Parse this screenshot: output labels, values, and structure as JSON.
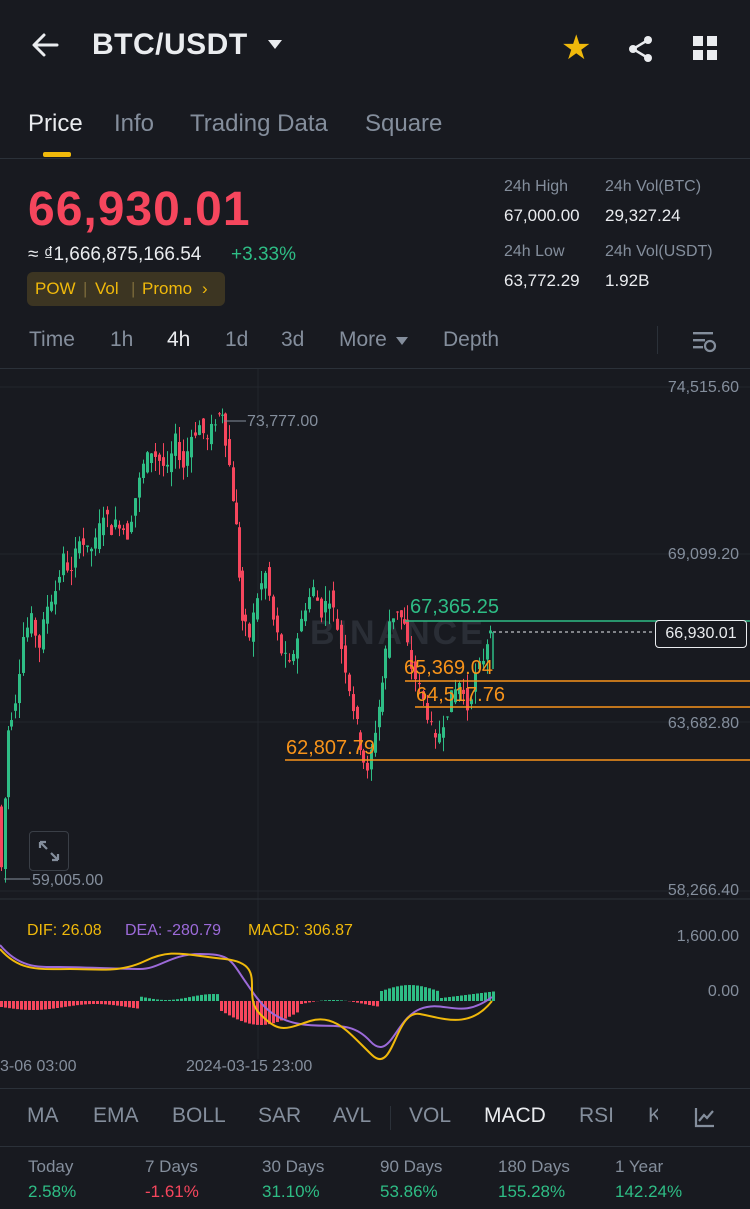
{
  "header": {
    "title": "BTC/USDT",
    "icons": [
      "back-arrow-icon",
      "caret-down-icon",
      "star-icon",
      "share-icon",
      "grid-icon"
    ]
  },
  "tabs": [
    {
      "label": "Price",
      "active": true
    },
    {
      "label": "Info",
      "active": false
    },
    {
      "label": "Trading Data",
      "active": false
    },
    {
      "label": "Square",
      "active": false
    }
  ],
  "ticker": {
    "last_price": "66,930.01",
    "fiat_price": "≈ ₫1,666,875,166.54",
    "change_pct": "+3.33%",
    "tags": [
      "POW",
      "Vol",
      "Promo"
    ],
    "high_label": "24h High",
    "high_value": "67,000.00",
    "vol_btc_label": "24h Vol(BTC)",
    "vol_btc_value": "29,327.24",
    "low_label": "24h Low",
    "low_value": "63,772.29",
    "vol_usdt_label": "24h Vol(USDT)",
    "vol_usdt_value": "1.92B"
  },
  "intervals": [
    {
      "label": "Time",
      "active": false
    },
    {
      "label": "1h",
      "active": false
    },
    {
      "label": "4h",
      "active": true
    },
    {
      "label": "1d",
      "active": false
    },
    {
      "label": "3d",
      "active": false
    },
    {
      "label": "More",
      "active": false
    },
    {
      "label": "Depth",
      "active": false
    }
  ],
  "chart": {
    "y_ticks": [
      "74,515.60",
      "69,099.20",
      "63,682.80",
      "58,266.40"
    ],
    "high_marker": "73,777.00",
    "low_marker": "59,005.00",
    "current_price_tag": "66,930.01",
    "lines": [
      {
        "label": "67,365.25",
        "color": "#2ebd85"
      },
      {
        "label": "65,369.04",
        "color": "#f7931a"
      },
      {
        "label": "64,517.76",
        "color": "#f7931a"
      },
      {
        "label": "62,807.79",
        "color": "#f7931a"
      }
    ],
    "watermark": "BINANCE",
    "x_ticks": [
      "3-06 03:00",
      "2024-03-15 23:00"
    ],
    "macd": {
      "dif": "DIF: 26.08",
      "dea": "DEA: -280.79",
      "macd": "MACD: 306.87",
      "y_ticks": [
        "1,600.00",
        "0.00"
      ]
    },
    "colors": {
      "up": "#2ebd85",
      "down": "#f6465d",
      "dif": "#f0b90b",
      "dea": "#9c6ad9"
    }
  },
  "indicators": [
    {
      "label": "MA",
      "active": false
    },
    {
      "label": "EMA",
      "active": false
    },
    {
      "label": "BOLL",
      "active": false
    },
    {
      "label": "SAR",
      "active": false
    },
    {
      "label": "AVL",
      "active": false
    },
    {
      "label": "VOL",
      "active": false
    },
    {
      "label": "MACD",
      "active": true
    },
    {
      "label": "RSI",
      "active": false
    },
    {
      "label": "K",
      "active": false
    }
  ],
  "performance": [
    {
      "label": "Today",
      "value": "2.58%",
      "dir": "up"
    },
    {
      "label": "7 Days",
      "value": "-1.61%",
      "dir": "down"
    },
    {
      "label": "30 Days",
      "value": "31.10%",
      "dir": "up"
    },
    {
      "label": "90 Days",
      "value": "53.86%",
      "dir": "up"
    },
    {
      "label": "180 Days",
      "value": "155.28%",
      "dir": "up"
    },
    {
      "label": "1 Year",
      "value": "142.24%",
      "dir": "up"
    }
  ]
}
